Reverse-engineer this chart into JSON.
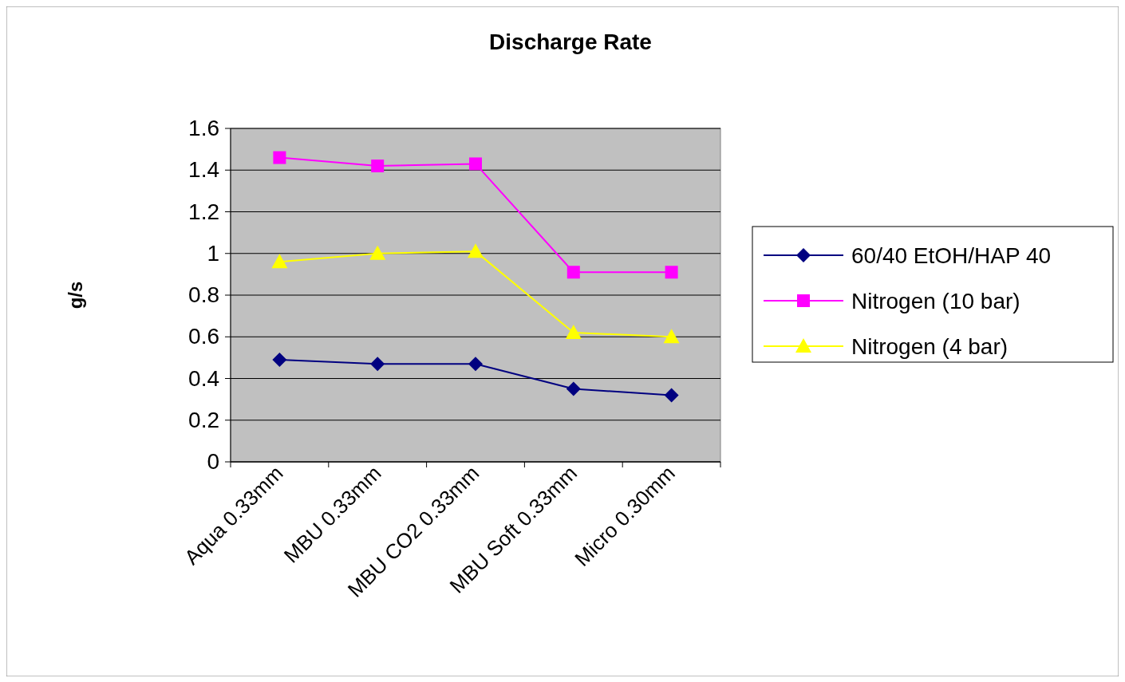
{
  "chart_data": {
    "type": "line",
    "title": "Discharge Rate",
    "ylabel": "g/s",
    "categories": [
      "Aqua 0.33mm",
      "MBU 0.33mm",
      "MBU CO2 0.33mm",
      "MBU Soft 0.33mm",
      "Micro 0.30mm"
    ],
    "series": [
      {
        "name": "60/40 EtOH/HAP 40",
        "color": "#000080",
        "marker": "diamond",
        "values": [
          0.49,
          0.47,
          0.47,
          0.35,
          0.32
        ]
      },
      {
        "name": "Nitrogen (10 bar)",
        "color": "#ff00ff",
        "marker": "square",
        "values": [
          1.46,
          1.42,
          1.43,
          0.91,
          0.91
        ]
      },
      {
        "name": "Nitrogen (4 bar)",
        "color": "#ffff00",
        "marker": "triangle",
        "values": [
          0.96,
          1.0,
          1.01,
          0.62,
          0.6
        ]
      }
    ],
    "ylim": [
      0,
      1.6
    ],
    "yticks": [
      0,
      0.2,
      0.4,
      0.6,
      0.8,
      1,
      1.2,
      1.4,
      1.6
    ],
    "grid": "y",
    "legend": "right"
  }
}
